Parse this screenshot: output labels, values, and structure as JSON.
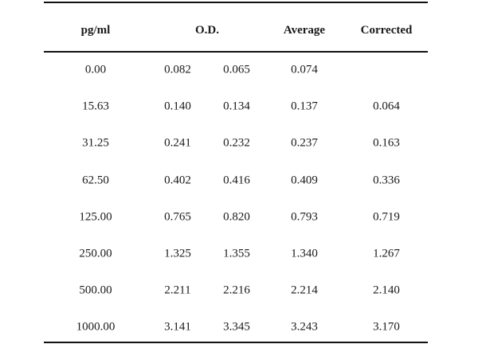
{
  "table": {
    "headers": {
      "conc": "pg/ml",
      "od": "O.D.",
      "average": "Average",
      "corrected": "Corrected"
    },
    "rows": [
      {
        "conc": "0.00",
        "od1": "0.082",
        "od2": "0.065",
        "average": "0.074",
        "corrected": ""
      },
      {
        "conc": "15.63",
        "od1": "0.140",
        "od2": "0.134",
        "average": "0.137",
        "corrected": "0.064"
      },
      {
        "conc": "31.25",
        "od1": "0.241",
        "od2": "0.232",
        "average": "0.237",
        "corrected": "0.163"
      },
      {
        "conc": "62.50",
        "od1": "0.402",
        "od2": "0.416",
        "average": "0.409",
        "corrected": "0.336"
      },
      {
        "conc": "125.00",
        "od1": "0.765",
        "od2": "0.820",
        "average": "0.793",
        "corrected": "0.719"
      },
      {
        "conc": "250.00",
        "od1": "1.325",
        "od2": "1.355",
        "average": "1.340",
        "corrected": "1.267"
      },
      {
        "conc": "500.00",
        "od1": "2.211",
        "od2": "2.216",
        "average": "2.214",
        "corrected": "2.140"
      },
      {
        "conc": "1000.00",
        "od1": "3.141",
        "od2": "3.345",
        "average": "3.243",
        "corrected": "3.170"
      }
    ]
  }
}
